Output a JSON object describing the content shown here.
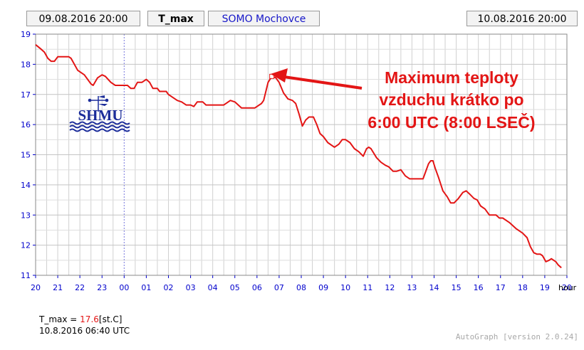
{
  "header": {
    "start_time": "09.08.2016 20:00",
    "variable": "T_max",
    "station": "SOMO Mochovce",
    "end_time": "10.08.2016 20:00"
  },
  "readout": {
    "label": "T_max",
    "equals": " = ",
    "value": "17.6",
    "unit": "[st.C]",
    "timestamp": "10.8.2016 06:40 UTC"
  },
  "logo_text": "SHMU",
  "credit": "AutoGraph [version 2.0.24]",
  "colors": {
    "line": "#e31515",
    "tick": "#0000cc",
    "grid": "#d0d0d0",
    "midnight": "#7777dd"
  },
  "chart_data": {
    "type": "line",
    "xlabel": "hour",
    "ylim": [
      11,
      19
    ],
    "xlim": [
      0,
      24
    ],
    "x_tick_labels": [
      "20",
      "21",
      "22",
      "23",
      "00",
      "01",
      "02",
      "03",
      "04",
      "05",
      "06",
      "07",
      "08",
      "09",
      "10",
      "11",
      "12",
      "13",
      "14",
      "15",
      "16",
      "17",
      "18",
      "19",
      "20"
    ],
    "y_ticks": [
      11,
      12,
      13,
      14,
      15,
      16,
      17,
      18,
      19
    ],
    "grid": true,
    "midnight_x": 4,
    "series": [
      {
        "values": [
          [
            0,
            18.65
          ],
          [
            0.25,
            18.5
          ],
          [
            0.4,
            18.4
          ],
          [
            0.55,
            18.2
          ],
          [
            0.7,
            18.1
          ],
          [
            0.85,
            18.1
          ],
          [
            1,
            18.25
          ],
          [
            1.5,
            18.25
          ],
          [
            1.6,
            18.2
          ],
          [
            1.9,
            17.8
          ],
          [
            2.2,
            17.65
          ],
          [
            2.5,
            17.35
          ],
          [
            2.6,
            17.3
          ],
          [
            2.8,
            17.55
          ],
          [
            3,
            17.65
          ],
          [
            3.15,
            17.6
          ],
          [
            3.4,
            17.4
          ],
          [
            3.6,
            17.3
          ],
          [
            4,
            17.3
          ],
          [
            4.15,
            17.3
          ],
          [
            4.3,
            17.2
          ],
          [
            4.45,
            17.2
          ],
          [
            4.6,
            17.4
          ],
          [
            4.8,
            17.4
          ],
          [
            5,
            17.5
          ],
          [
            5.15,
            17.4
          ],
          [
            5.3,
            17.2
          ],
          [
            5.5,
            17.2
          ],
          [
            5.6,
            17.1
          ],
          [
            5.9,
            17.1
          ],
          [
            6,
            17.0
          ],
          [
            6.4,
            16.8
          ],
          [
            6.6,
            16.75
          ],
          [
            6.8,
            16.65
          ],
          [
            7,
            16.65
          ],
          [
            7.15,
            16.6
          ],
          [
            7.3,
            16.75
          ],
          [
            7.55,
            16.75
          ],
          [
            7.7,
            16.65
          ],
          [
            8.5,
            16.65
          ],
          [
            8.8,
            16.8
          ],
          [
            9,
            16.75
          ],
          [
            9.3,
            16.55
          ],
          [
            9.9,
            16.55
          ],
          [
            10.2,
            16.7
          ],
          [
            10.3,
            16.8
          ],
          [
            10.5,
            17.4
          ],
          [
            10.67,
            17.6
          ],
          [
            10.85,
            17.55
          ],
          [
            11,
            17.4
          ],
          [
            11.2,
            17.05
          ],
          [
            11.4,
            16.85
          ],
          [
            11.6,
            16.8
          ],
          [
            11.75,
            16.7
          ],
          [
            11.9,
            16.35
          ],
          [
            12.05,
            15.95
          ],
          [
            12.2,
            16.15
          ],
          [
            12.35,
            16.25
          ],
          [
            12.55,
            16.25
          ],
          [
            12.7,
            16.0
          ],
          [
            12.85,
            15.7
          ],
          [
            13,
            15.6
          ],
          [
            13.2,
            15.4
          ],
          [
            13.5,
            15.25
          ],
          [
            13.7,
            15.35
          ],
          [
            13.85,
            15.5
          ],
          [
            14,
            15.5
          ],
          [
            14.2,
            15.4
          ],
          [
            14.4,
            15.2
          ],
          [
            14.6,
            15.1
          ],
          [
            14.8,
            14.95
          ],
          [
            14.95,
            15.2
          ],
          [
            15.05,
            15.25
          ],
          [
            15.15,
            15.2
          ],
          [
            15.4,
            14.9
          ],
          [
            15.6,
            14.75
          ],
          [
            15.8,
            14.65
          ],
          [
            15.95,
            14.6
          ],
          [
            16.15,
            14.45
          ],
          [
            16.3,
            14.45
          ],
          [
            16.5,
            14.5
          ],
          [
            16.7,
            14.3
          ],
          [
            16.9,
            14.2
          ],
          [
            17.5,
            14.2
          ],
          [
            17.6,
            14.4
          ],
          [
            17.75,
            14.7
          ],
          [
            17.85,
            14.8
          ],
          [
            17.95,
            14.8
          ],
          [
            18.05,
            14.55
          ],
          [
            18.2,
            14.25
          ],
          [
            18.4,
            13.8
          ],
          [
            18.6,
            13.6
          ],
          [
            18.75,
            13.4
          ],
          [
            18.9,
            13.4
          ],
          [
            19.1,
            13.55
          ],
          [
            19.3,
            13.75
          ],
          [
            19.45,
            13.8
          ],
          [
            19.6,
            13.7
          ],
          [
            19.8,
            13.55
          ],
          [
            19.95,
            13.5
          ],
          [
            20.1,
            13.3
          ],
          [
            20.3,
            13.2
          ],
          [
            20.5,
            13.0
          ],
          [
            20.8,
            13.0
          ],
          [
            20.95,
            12.9
          ],
          [
            21.1,
            12.9
          ],
          [
            21.4,
            12.75
          ],
          [
            21.7,
            12.55
          ],
          [
            22,
            12.4
          ],
          [
            22.2,
            12.25
          ],
          [
            22.35,
            11.95
          ],
          [
            22.5,
            11.75
          ],
          [
            22.65,
            11.7
          ],
          [
            22.8,
            11.7
          ],
          [
            22.9,
            11.65
          ],
          [
            23.05,
            11.45
          ],
          [
            23.2,
            11.5
          ],
          [
            23.3,
            11.55
          ],
          [
            23.5,
            11.45
          ],
          [
            23.6,
            11.35
          ],
          [
            23.75,
            11.25
          ]
        ]
      }
    ],
    "max_point": {
      "x": 10.67,
      "y": 17.6
    },
    "annotation": [
      "Maximum teploty",
      "vzduchu krátko po",
      "6:00 UTC (8:00 LSEČ)"
    ]
  }
}
